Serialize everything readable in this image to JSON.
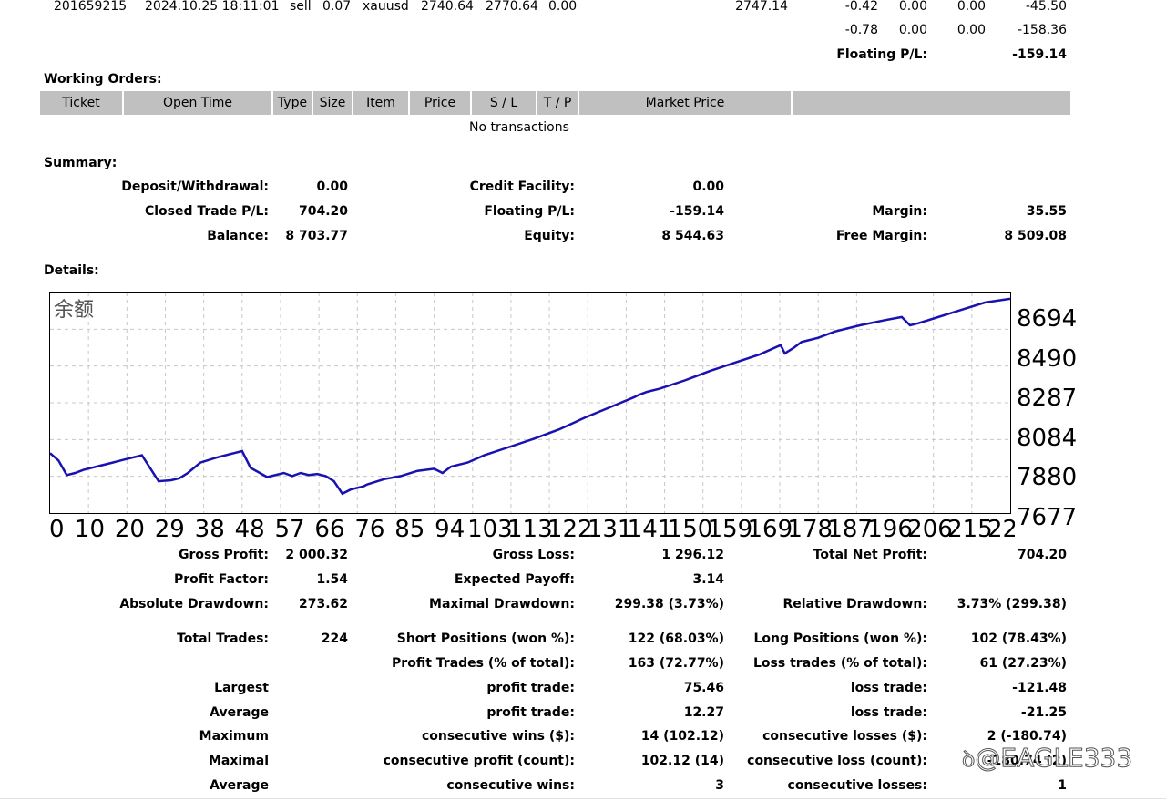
{
  "position_row": {
    "ticket": "201659215",
    "open_time": "2024.10.25 18:11:01",
    "type": "sell",
    "size": "0.07",
    "item": "xauusd",
    "price": "2740.64",
    "sl": "2770.64",
    "tp": "0.00",
    "market_price": "2747.14",
    "commission": "-0.42",
    "taxes": "0.00",
    "swap": "0.00",
    "profit": "-45.50"
  },
  "position_totals": {
    "commission": "-0.78",
    "taxes": "0.00",
    "swap": "0.00",
    "profit": "-158.36"
  },
  "floating_pl": {
    "label": "Floating P/L:",
    "value": "-159.14"
  },
  "working_orders": {
    "title": "Working Orders:",
    "columns": [
      "Ticket",
      "Open Time",
      "Type",
      "Size",
      "Item",
      "Price",
      "S / L",
      "T / P",
      "Market Price",
      ""
    ],
    "empty_text": "No transactions"
  },
  "summary": {
    "title": "Summary:",
    "deposit_label": "Deposit/Withdrawal:",
    "deposit_value": "0.00",
    "credit_label": "Credit Facility:",
    "credit_value": "0.00",
    "closed_pl_label": "Closed Trade P/L:",
    "closed_pl_value": "704.20",
    "floating_label": "Floating P/L:",
    "floating_value": "-159.14",
    "margin_label": "Margin:",
    "margin_value": "35.55",
    "balance_label": "Balance:",
    "balance_value": "8 703.77",
    "equity_label": "Equity:",
    "equity_value": "8 544.63",
    "free_margin_label": "Free Margin:",
    "free_margin_value": "8 509.08"
  },
  "details": {
    "title": "Details:"
  },
  "chart_data": {
    "type": "line",
    "title": "余额",
    "line_color": "#1a12b0",
    "grid": true,
    "y_ticks": [
      "8694",
      "8490",
      "8287",
      "8084",
      "7880",
      "7677"
    ],
    "ylim": [
      7677,
      8694
    ],
    "x_ticks": [
      "0",
      "10",
      "20",
      "29",
      "38",
      "48",
      "57",
      "66",
      "76",
      "85",
      "94",
      "103",
      "113",
      "122",
      "131",
      "141",
      "150",
      "159",
      "169",
      "178",
      "187",
      "196",
      "206",
      "215",
      "224"
    ],
    "xlim": [
      0,
      230
    ],
    "series": [
      {
        "name": "",
        "x": [
          0,
          2,
          4,
          6,
          8,
          10,
          12,
          15,
          18,
          22,
          26,
          29,
          31,
          33,
          36,
          40,
          44,
          46,
          48,
          52,
          56,
          58,
          60,
          62,
          64,
          66,
          68,
          70,
          72,
          74,
          75,
          76,
          80,
          84,
          88,
          92,
          94,
          96,
          98,
          100,
          104,
          110,
          116,
          122,
          128,
          134,
          140,
          141,
          143,
          146,
          152,
          158,
          164,
          170,
          175,
          176,
          178,
          180,
          182,
          184,
          188,
          194,
          200,
          204,
          206,
          208,
          212,
          216,
          220,
          224,
          230
        ],
        "y": [
          7965,
          7930,
          7860,
          7870,
          7885,
          7895,
          7905,
          7920,
          7935,
          7955,
          7830,
          7835,
          7845,
          7870,
          7920,
          7945,
          7965,
          7975,
          7895,
          7850,
          7870,
          7855,
          7870,
          7860,
          7865,
          7855,
          7830,
          7770,
          7790,
          7800,
          7805,
          7815,
          7840,
          7855,
          7880,
          7890,
          7870,
          7900,
          7910,
          7920,
          7955,
          7995,
          8035,
          8080,
          8135,
          8185,
          8235,
          8245,
          8260,
          8275,
          8315,
          8360,
          8400,
          8440,
          8485,
          8445,
          8470,
          8500,
          8510,
          8520,
          8550,
          8580,
          8605,
          8620,
          8580,
          8590,
          8615,
          8640,
          8665,
          8690,
          8708
        ]
      }
    ]
  },
  "stats": {
    "gross_profit_label": "Gross Profit:",
    "gross_profit": "2 000.32",
    "gross_loss_label": "Gross Loss:",
    "gross_loss": "1 296.12",
    "total_net_profit_label": "Total Net Profit:",
    "total_net_profit": "704.20",
    "profit_factor_label": "Profit Factor:",
    "profit_factor": "1.54",
    "expected_payoff_label": "Expected Payoff:",
    "expected_payoff": "3.14",
    "abs_drawdown_label": "Absolute Drawdown:",
    "abs_drawdown": "273.62",
    "max_drawdown_label": "Maximal Drawdown:",
    "max_drawdown": "299.38 (3.73%)",
    "rel_drawdown_label": "Relative Drawdown:",
    "rel_drawdown": "3.73% (299.38)",
    "total_trades_label": "Total Trades:",
    "total_trades": "224",
    "short_label": "Short Positions (won %):",
    "short": "122 (68.03%)",
    "long_label": "Long Positions (won %):",
    "long": "102 (78.43%)",
    "profit_trades_label": "Profit Trades (% of total):",
    "profit_trades": "163 (72.77%)",
    "loss_trades_label": "Loss trades (% of total):",
    "loss_trades": "61 (27.23%)",
    "largest_label": "Largest",
    "largest_profit_label": "profit trade:",
    "largest_profit": "75.46",
    "largest_loss_label": "loss trade:",
    "largest_loss": "-121.48",
    "average_label": "Average",
    "average_profit_label": "profit trade:",
    "average_profit": "12.27",
    "average_loss_label": "loss trade:",
    "average_loss": "-21.25",
    "maximum_label": "Maximum",
    "max_cons_wins_label": "consecutive wins ($):",
    "max_cons_wins": "14 (102.12)",
    "max_cons_losses_label": "consecutive losses ($):",
    "max_cons_losses": "2 (-180.74)",
    "maximal_label": "Maximal",
    "maximal_cons_profit_label": "consecutive profit (count):",
    "maximal_cons_profit": "102.12 (14)",
    "maximal_cons_loss_label": "consecutive loss (count):",
    "maximal_cons_loss": "-180.74 (2)",
    "average2_label": "Average",
    "avg_cons_wins_label": "consecutive wins:",
    "avg_cons_wins": "3",
    "avg_cons_losses_label": "consecutive losses:",
    "avg_cons_losses": "1"
  },
  "watermark": "@EAGLE333"
}
